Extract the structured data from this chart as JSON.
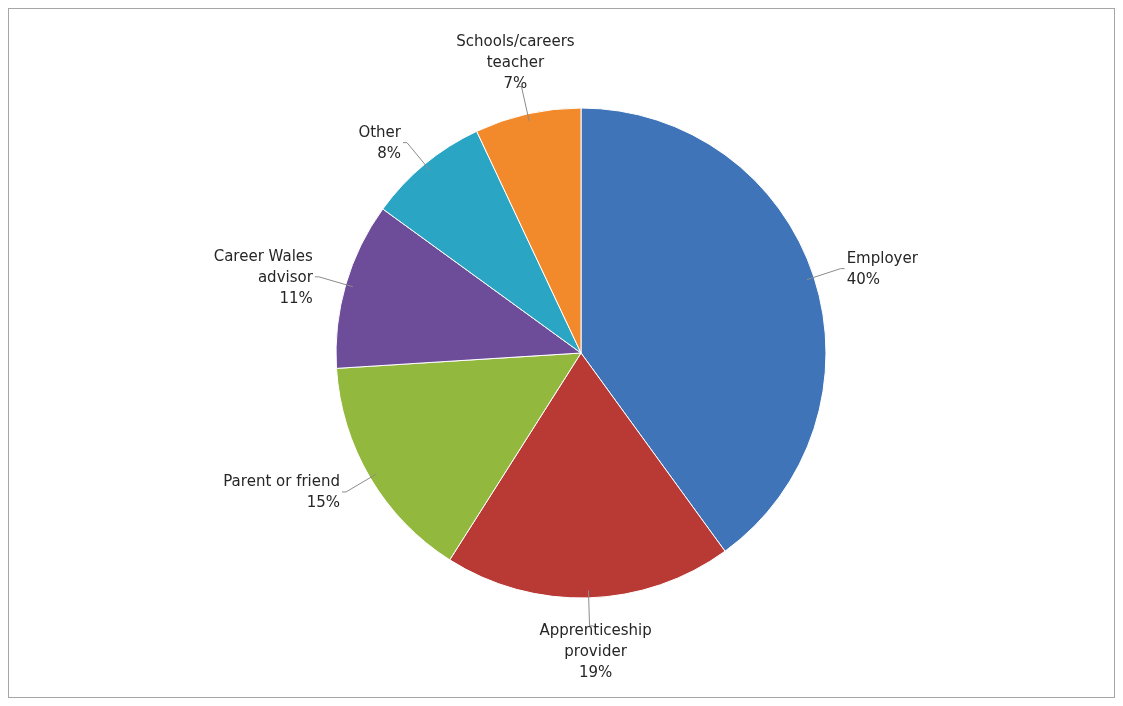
{
  "chart_data": {
    "type": "pie",
    "categories": [
      "Employer",
      "Apprenticeship provider",
      "Parent or friend",
      "Career Wales advisor",
      "Other",
      "Schools/careers teacher"
    ],
    "values": [
      40,
      19,
      15,
      11,
      8,
      7
    ],
    "value_labels": [
      "40%",
      "19%",
      "15%",
      "11%",
      "8%",
      "7%"
    ],
    "colors": [
      "#3f74b8",
      "#b93a35",
      "#93b83e",
      "#6d4c9a",
      "#2aa5c4",
      "#f2892a"
    ]
  }
}
